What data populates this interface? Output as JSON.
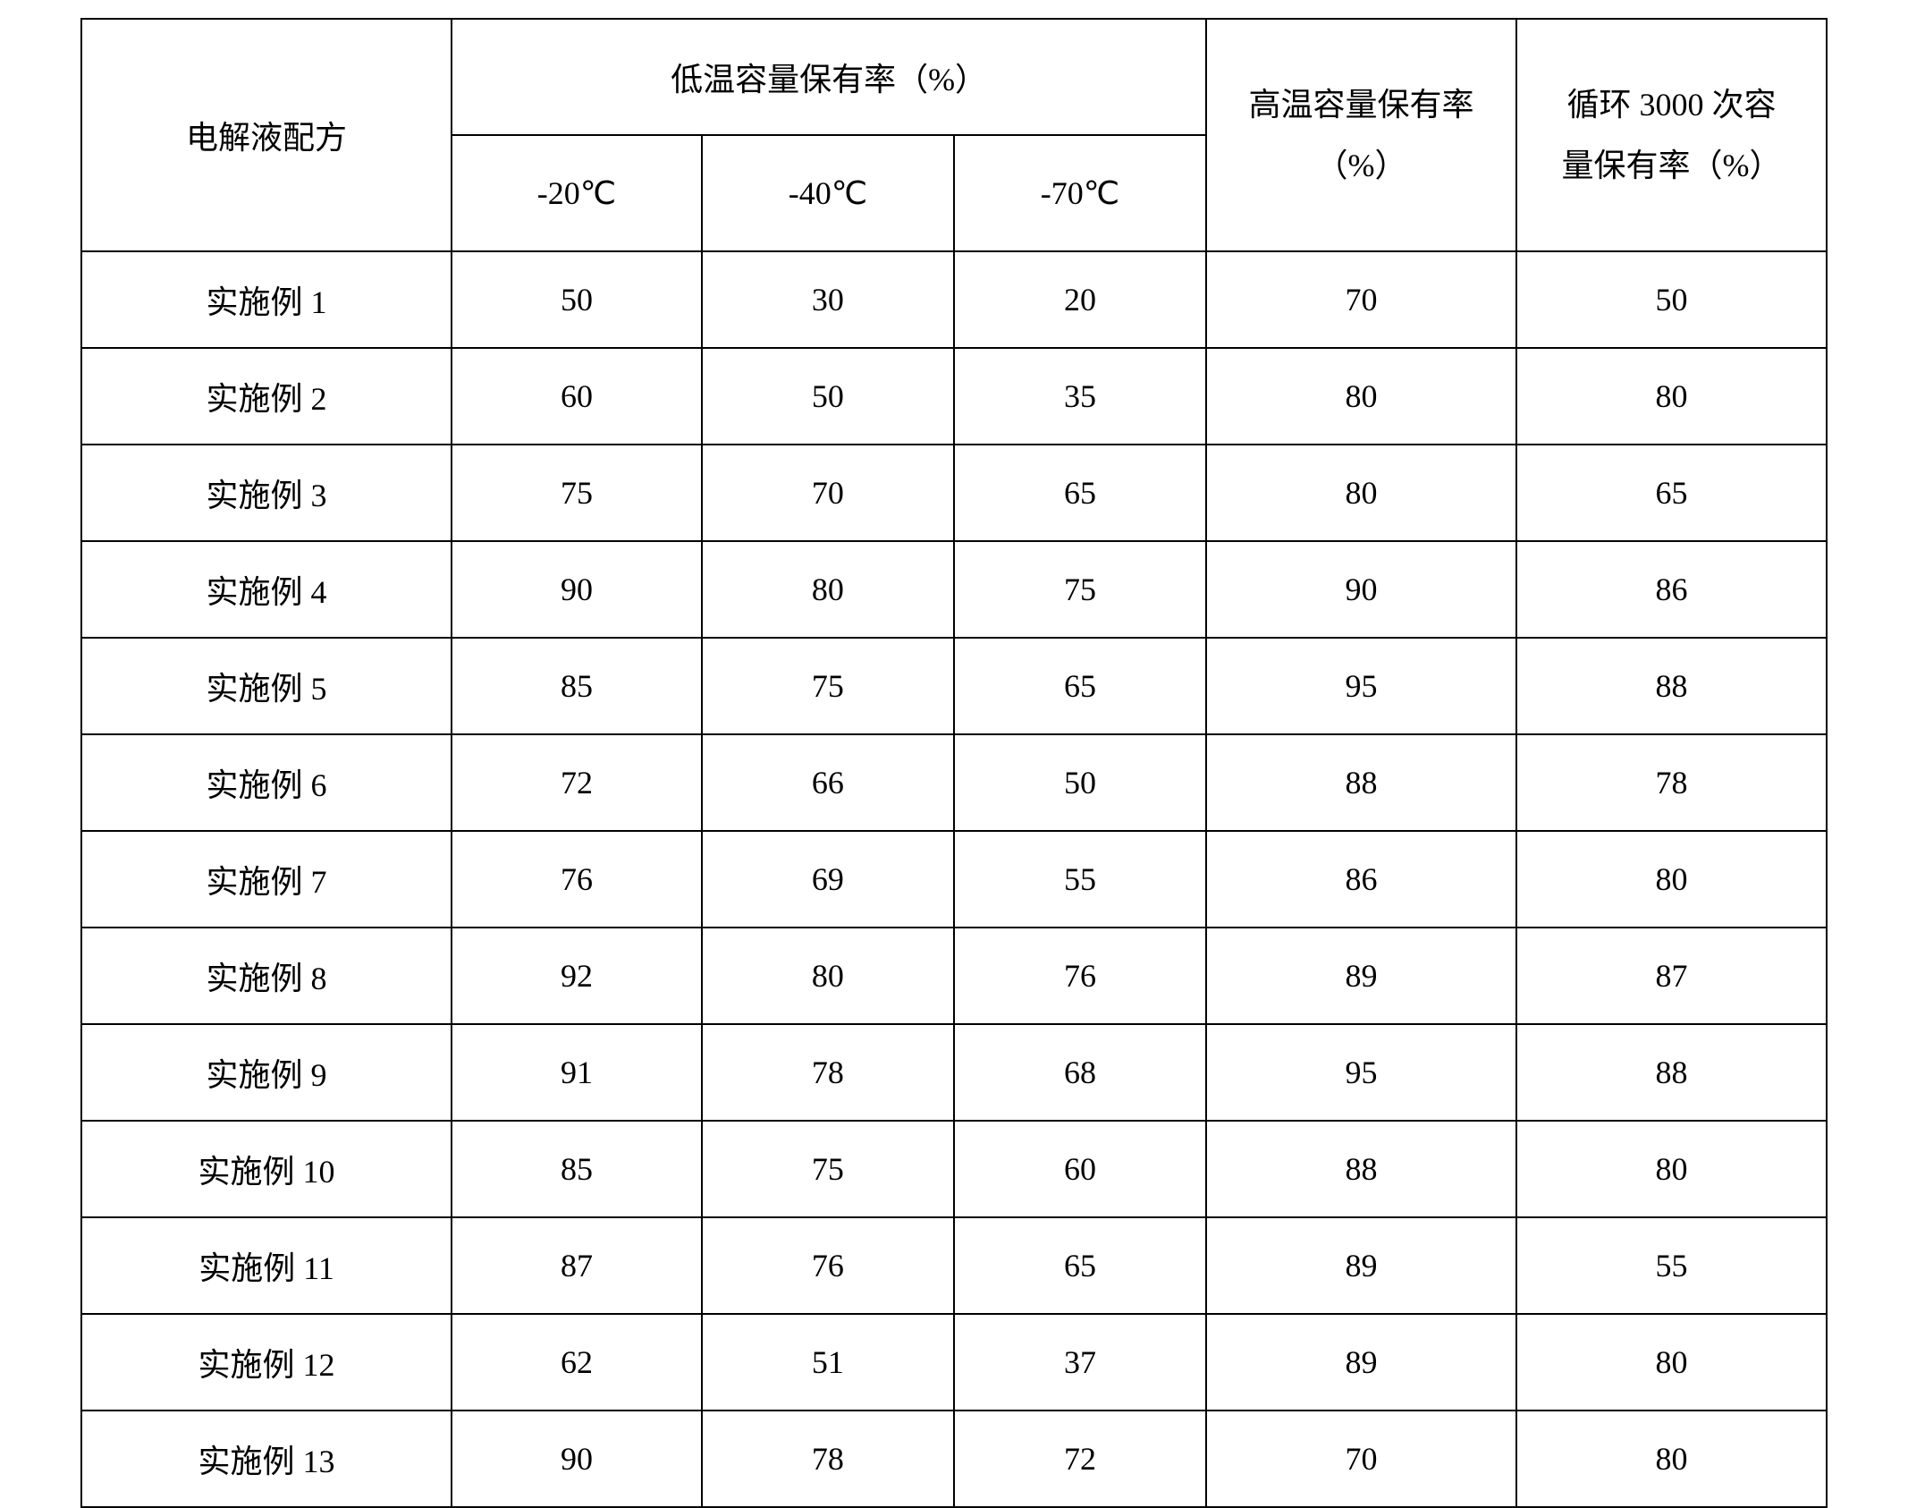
{
  "table": {
    "background_color": "#ffffff",
    "border_color": "#000000",
    "text_color": "#000000",
    "font_family": "SimSun",
    "font_size_pt": 27,
    "header": {
      "formula": "电解液配方",
      "low_temp_group": "低温容量保有率（%）",
      "low_temp_sub": [
        "-20℃",
        "-40℃",
        "-70℃"
      ],
      "high_temp_line1": "高温容量保有率",
      "high_temp_line2": "（%）",
      "cycle_line1": "循环 3000 次容",
      "cycle_line2": "量保有率（%）"
    },
    "columns": [
      "电解液配方",
      "-20℃",
      "-40℃",
      "-70℃",
      "高温容量保有率（%）",
      "循环 3000 次容量保有率（%）"
    ],
    "rows": [
      {
        "label": "实施例 1",
        "m20": "50",
        "m40": "30",
        "m70": "20",
        "high": "70",
        "cycle": "50"
      },
      {
        "label": "实施例 2",
        "m20": "60",
        "m40": "50",
        "m70": "35",
        "high": "80",
        "cycle": "80"
      },
      {
        "label": "实施例 3",
        "m20": "75",
        "m40": "70",
        "m70": "65",
        "high": "80",
        "cycle": "65"
      },
      {
        "label": "实施例 4",
        "m20": "90",
        "m40": "80",
        "m70": "75",
        "high": "90",
        "cycle": "86"
      },
      {
        "label": "实施例 5",
        "m20": "85",
        "m40": "75",
        "m70": "65",
        "high": "95",
        "cycle": "88"
      },
      {
        "label": "实施例 6",
        "m20": "72",
        "m40": "66",
        "m70": "50",
        "high": "88",
        "cycle": "78"
      },
      {
        "label": "实施例 7",
        "m20": "76",
        "m40": "69",
        "m70": "55",
        "high": "86",
        "cycle": "80"
      },
      {
        "label": "实施例 8",
        "m20": "92",
        "m40": "80",
        "m70": "76",
        "high": "89",
        "cycle": "87"
      },
      {
        "label": "实施例 9",
        "m20": "91",
        "m40": "78",
        "m70": "68",
        "high": "95",
        "cycle": "88"
      },
      {
        "label": "实施例 10",
        "m20": "85",
        "m40": "75",
        "m70": "60",
        "high": "88",
        "cycle": "80"
      },
      {
        "label": "实施例 11",
        "m20": "87",
        "m40": "76",
        "m70": "65",
        "high": "89",
        "cycle": "55"
      },
      {
        "label": "实施例 12",
        "m20": "62",
        "m40": "51",
        "m70": "37",
        "high": "89",
        "cycle": "80"
      },
      {
        "label": "实施例 13",
        "m20": "90",
        "m40": "78",
        "m70": "72",
        "high": "70",
        "cycle": "80"
      }
    ]
  }
}
